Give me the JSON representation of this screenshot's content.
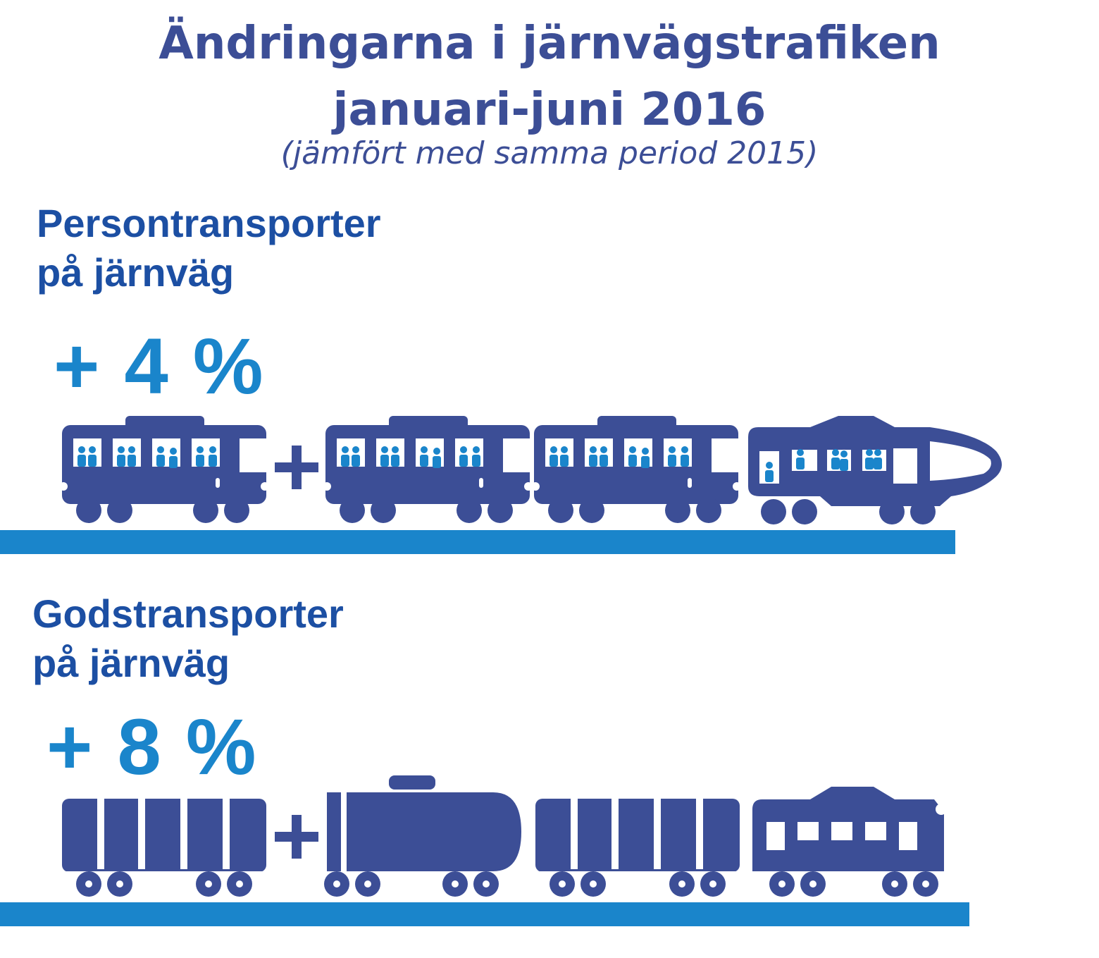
{
  "header": {
    "title_line1": "Ändringarna i järnvägstrafiken",
    "title_line2": "januari-juni 2016",
    "subtitle": "(jämfört med samma period 2015)"
  },
  "passenger": {
    "heading_line1": "Persontransporter",
    "heading_line2": "på järnväg",
    "change": "+ 4 %"
  },
  "freight": {
    "heading_line1": "Godstransporter",
    "heading_line2": "på järnväg",
    "change": "+ 8 %"
  },
  "colors": {
    "title": "#3c4e96",
    "heading": "#1c4fa3",
    "accent": "#1a85cb",
    "train": "#3c4e96",
    "rail": "#1a85cb"
  }
}
